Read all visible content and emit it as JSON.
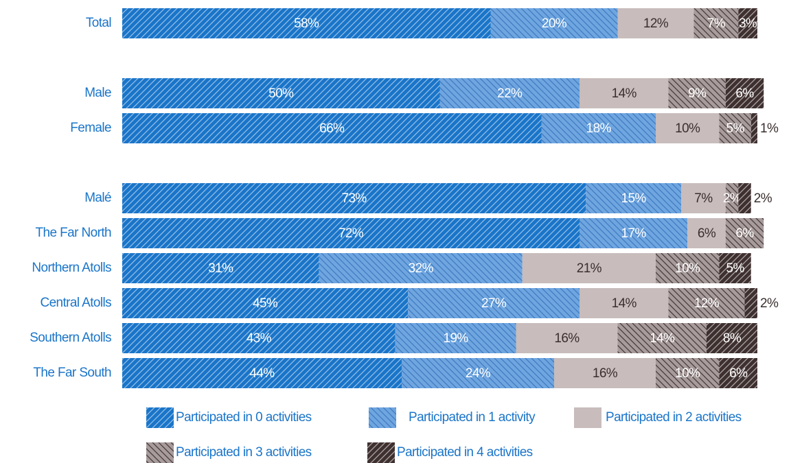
{
  "chart_data": {
    "type": "stacked-bar",
    "orientation": "horizontal",
    "categories": [
      "Total",
      null,
      "Male",
      "Female",
      null,
      "Malé",
      "The Far North",
      "Northern Atolls",
      "Central Atolls",
      "Southern Atolls",
      "The Far South"
    ],
    "xlim": [
      0,
      100
    ],
    "series": [
      {
        "name": "Participated in 0 activities",
        "color": "#1a75c9",
        "values": [
          58,
          null,
          50,
          66,
          null,
          73,
          72,
          31,
          45,
          43,
          44
        ],
        "value_labels": [
          "58%",
          null,
          "50%",
          "66%",
          null,
          "73%",
          "72%",
          "31%",
          "45%",
          "43%",
          "44%"
        ]
      },
      {
        "name": "Participated in 1 activity",
        "color": "#6fa6e0",
        "values": [
          20,
          null,
          22,
          18,
          null,
          15,
          17,
          32,
          27,
          19,
          24
        ],
        "value_labels": [
          "20%",
          null,
          "22%",
          "18%",
          null,
          "15%",
          "17%",
          "32%",
          "27%",
          "19%",
          "24%"
        ]
      },
      {
        "name": "Participated in 2 activities",
        "color": "#c8bcbc",
        "values": [
          12,
          null,
          14,
          10,
          null,
          7,
          6,
          21,
          14,
          16,
          16
        ],
        "value_labels": [
          "12%",
          null,
          "14%",
          "10%",
          null,
          "7%",
          "6%",
          "21%",
          "14%",
          "16%",
          "16%"
        ]
      },
      {
        "name": "Participated in 3 activities",
        "color": "#a89b9b",
        "values": [
          7,
          null,
          9,
          5,
          null,
          2,
          6,
          10,
          12,
          14,
          10
        ],
        "value_labels": [
          "7%",
          null,
          "9%",
          "5%",
          null,
          "2%",
          "6%",
          "10%",
          "12%",
          "14%",
          "10%"
        ]
      },
      {
        "name": "Participated in 4 activities",
        "color": "#3f3030",
        "values": [
          3,
          null,
          6,
          1,
          null,
          2,
          null,
          5,
          2,
          8,
          6
        ],
        "value_labels": [
          "3%",
          null,
          "6%",
          "1%",
          null,
          "2%",
          null,
          "5%",
          "2%",
          "8%",
          "6%"
        ]
      }
    ]
  }
}
